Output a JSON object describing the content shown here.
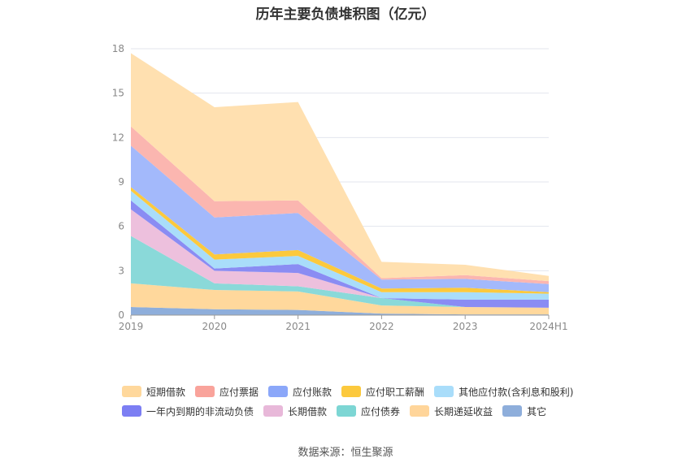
{
  "chart_data": {
    "type": "area",
    "title": "历年主要负债堆积图（亿元）",
    "categories": [
      "2019",
      "2020",
      "2021",
      "2022",
      "2023",
      "2024H1"
    ],
    "ylim": [
      0,
      18
    ],
    "yticks": [
      0,
      3,
      6,
      9,
      12,
      15,
      18
    ],
    "grid": true,
    "legend_position": "bottom",
    "series": [
      {
        "name": "其它",
        "color": "#8eaedb",
        "values": [
          0.55,
          0.4,
          0.35,
          0.1,
          0.05,
          0.05
        ]
      },
      {
        "name": "长期递延收益",
        "color": "#ffd89c",
        "values": [
          1.6,
          1.3,
          1.25,
          0.55,
          0.5,
          0.45
        ]
      },
      {
        "name": "应付债券",
        "color": "#8ad9d9",
        "values": [
          3.2,
          0.45,
          0.35,
          0.5,
          0.0,
          0.0
        ]
      },
      {
        "name": "长期借款",
        "color": "#edc0dd",
        "values": [
          1.8,
          0.85,
          0.9,
          0.0,
          0.0,
          0.0
        ]
      },
      {
        "name": "一年内到期的非流动负债",
        "color": "#8a8cf3",
        "values": [
          0.6,
          0.15,
          0.6,
          0.0,
          0.5,
          0.55
        ]
      },
      {
        "name": "其他应付款(含利息和股利)",
        "color": "#a9ddfa",
        "values": [
          0.65,
          0.6,
          0.55,
          0.4,
          0.5,
          0.4
        ]
      },
      {
        "name": "应付职工薪酬",
        "color": "#fcc93d",
        "values": [
          0.25,
          0.35,
          0.4,
          0.25,
          0.3,
          0.1
        ]
      },
      {
        "name": "应付账款",
        "color": "#a3b9fb",
        "values": [
          2.8,
          2.5,
          2.5,
          0.6,
          0.6,
          0.55
        ]
      },
      {
        "name": "应付票据",
        "color": "#fbb6b0",
        "values": [
          1.3,
          1.1,
          0.85,
          0.1,
          0.25,
          0.2
        ]
      },
      {
        "name": "短期借款",
        "color": "#ffe0b0",
        "values": [
          4.95,
          6.35,
          6.65,
          1.1,
          0.7,
          0.35
        ]
      }
    ]
  },
  "legend": {
    "row1": [
      {
        "label": "短期借款",
        "color": "#ffd89c"
      },
      {
        "label": "应付票据",
        "color": "#f9a39b"
      },
      {
        "label": "应付账款",
        "color": "#8ba7f9"
      },
      {
        "label": "应付职工薪酬",
        "color": "#fcc93d"
      },
      {
        "label": "其他应付款(含利息和股利)",
        "color": "#a9ddfa"
      }
    ],
    "row2": [
      {
        "label": "一年内到期的非流动负债",
        "color": "#7c7ef3"
      },
      {
        "label": "长期借款",
        "color": "#e8b8d9"
      },
      {
        "label": "应付债券",
        "color": "#7dd6d4"
      },
      {
        "label": "长期递延收益",
        "color": "#ffd59a"
      },
      {
        "label": "其它",
        "color": "#8eaedb"
      }
    ]
  },
  "source": "数据来源：恒生聚源"
}
